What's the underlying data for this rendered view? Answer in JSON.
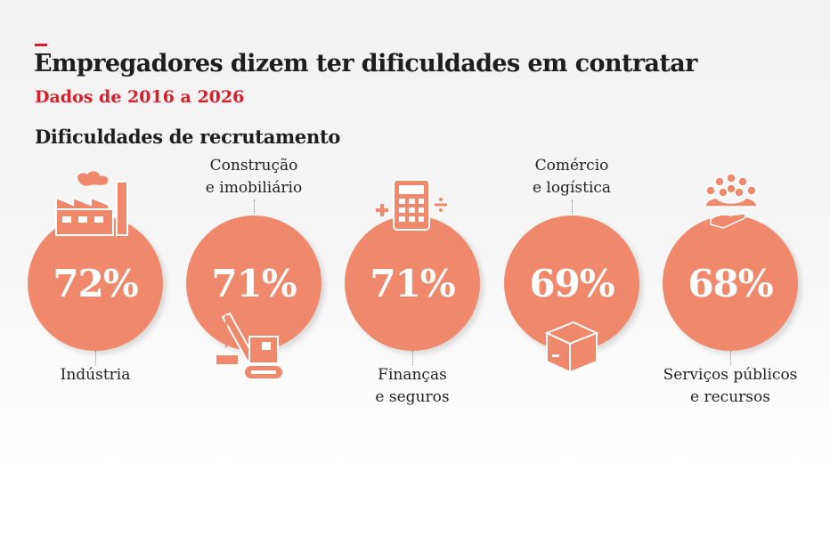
{
  "header": {
    "title": "Empregadores dizem ter dificuldades em contratar",
    "subtitle": "Dados de 2016 a 2026",
    "section": "Dificuldades de recrutamento"
  },
  "colors": {
    "circle": "#f0886b",
    "accent": "#d9202a"
  },
  "chart_data": {
    "type": "bubble",
    "title": "Dificuldades de recrutamento",
    "unit": "%",
    "categories": [
      "Indústria",
      "Construção e imobiliário",
      "Finanças e seguros",
      "Comércio e logística",
      "Serviços públicos e recursos"
    ],
    "values": [
      72,
      71,
      71,
      69,
      68
    ],
    "items": [
      {
        "label1": "Indústria",
        "label2": "",
        "value_label": "72%",
        "icon": "factory-icon"
      },
      {
        "label1": "Construção",
        "label2": "e imobiliário",
        "value_label": "71%",
        "icon": "crane-icon"
      },
      {
        "label1": "Finanças",
        "label2": "e seguros",
        "value_label": "71%",
        "icon": "calculator-icon"
      },
      {
        "label1": "Comércio",
        "label2": "e logística",
        "value_label": "69%",
        "icon": "box-icon"
      },
      {
        "label1": "Serviços públicos",
        "label2": "e recursos",
        "value_label": "68%",
        "icon": "people-hand-icon"
      }
    ]
  }
}
